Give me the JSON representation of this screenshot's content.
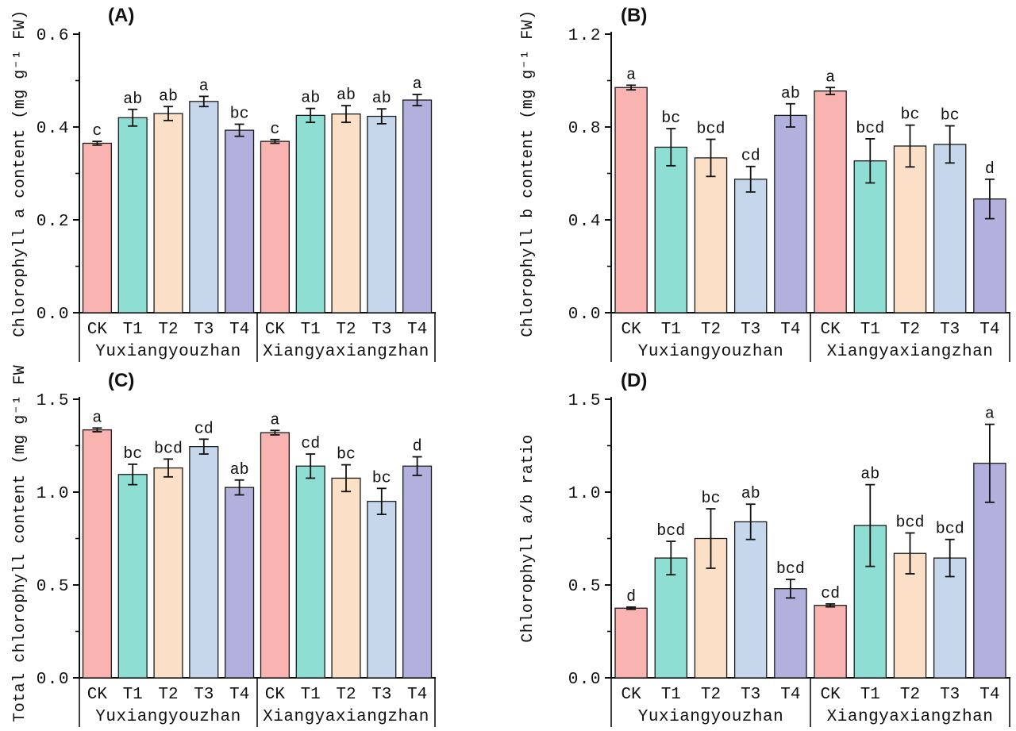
{
  "figure": {
    "background": "#ffffff",
    "series_colors": {
      "CK": "#F9B3B1",
      "T1": "#8EDED4",
      "T2": "#FBDFC6",
      "T3": "#C6D7EC",
      "T4": "#B2B0DC"
    },
    "bar_edge_color": "#1A1A1A",
    "error_bar_color": "#111111",
    "axis_color": "#111111"
  },
  "chart_data": [
    {
      "type": "bar",
      "tag": "(A)",
      "ylabel": "Chlorophyll a content (mg g⁻¹ FW)",
      "ylim": [
        0,
        0.6
      ],
      "yticks": [
        0,
        0.2,
        0.4,
        0.6
      ],
      "ytick_labels": [
        "0.0",
        "0.2",
        "0.4",
        "0.6"
      ],
      "minor_ticks": [
        0.1,
        0.3,
        0.5
      ],
      "categories": [
        "CK",
        "T1",
        "T2",
        "T3",
        "T4"
      ],
      "groups": [
        {
          "label": "Yuxiangyouzhan",
          "values": [
            0.365,
            0.42,
            0.429,
            0.455,
            0.393
          ],
          "errors": [
            0.004,
            0.018,
            0.015,
            0.011,
            0.013
          ],
          "letters": [
            "c",
            "ab",
            "ab",
            "a",
            "bc"
          ]
        },
        {
          "label": "Xiangyaxiangzhan",
          "values": [
            0.369,
            0.425,
            0.428,
            0.423,
            0.458
          ],
          "errors": [
            0.004,
            0.015,
            0.018,
            0.016,
            0.012
          ],
          "letters": [
            "c",
            "ab",
            "ab",
            "ab",
            "a"
          ]
        }
      ]
    },
    {
      "type": "bar",
      "tag": "(B)",
      "ylabel": "Chlorophyll b content (mg g⁻¹ FW)",
      "ylim": [
        0,
        1.2
      ],
      "yticks": [
        0,
        0.4,
        0.8,
        1.2
      ],
      "ytick_labels": [
        "0.0",
        "0.4",
        "0.8",
        "1.2"
      ],
      "minor_ticks": [
        0.2,
        0.6,
        1.0
      ],
      "categories": [
        "CK",
        "T1",
        "T2",
        "T3",
        "T4"
      ],
      "groups": [
        {
          "label": "Yuxiangyouzhan",
          "values": [
            0.97,
            0.713,
            0.667,
            0.575,
            0.85
          ],
          "errors": [
            0.01,
            0.08,
            0.08,
            0.055,
            0.05
          ],
          "letters": [
            "a",
            "bc",
            "bcd",
            "cd",
            "ab"
          ]
        },
        {
          "label": "Xiangyaxiangzhan",
          "values": [
            0.955,
            0.654,
            0.718,
            0.725,
            0.49
          ],
          "errors": [
            0.015,
            0.095,
            0.09,
            0.08,
            0.085
          ],
          "letters": [
            "a",
            "bcd",
            "bc",
            "bc",
            "d"
          ]
        }
      ]
    },
    {
      "type": "bar",
      "tag": "(C)",
      "ylabel": "Total chlorophyll content (mg g⁻¹ FW)",
      "ylim": [
        0,
        1.5
      ],
      "yticks": [
        0,
        0.5,
        1.0,
        1.5
      ],
      "ytick_labels": [
        "0.0",
        "0.5",
        "1.0",
        "1.5"
      ],
      "minor_ticks": [
        0.25,
        0.75,
        1.25
      ],
      "categories": [
        "CK",
        "T1",
        "T2",
        "T3",
        "T4"
      ],
      "groups": [
        {
          "label": "Yuxiangyouzhan",
          "values": [
            1.335,
            1.095,
            1.13,
            1.245,
            1.025
          ],
          "errors": [
            0.01,
            0.055,
            0.048,
            0.04,
            0.04
          ],
          "letters": [
            "a",
            "bc",
            "bcd",
            "cd",
            "ab"
          ]
        },
        {
          "label": "Xiangyaxiangzhan",
          "values": [
            1.32,
            1.14,
            1.075,
            0.95,
            1.14
          ],
          "errors": [
            0.012,
            0.065,
            0.072,
            0.07,
            0.05
          ],
          "letters": [
            "a",
            "cd",
            "bc",
            "bc",
            "d"
          ]
        }
      ]
    },
    {
      "type": "bar",
      "tag": "(D)",
      "ylabel": "Chlorophyll a/b ratio",
      "ylim": [
        0,
        1.5
      ],
      "yticks": [
        0,
        0.5,
        1.0,
        1.5
      ],
      "ytick_labels": [
        "0.0",
        "0.5",
        "1.0",
        "1.5"
      ],
      "minor_ticks": [
        0.25,
        0.75,
        1.25
      ],
      "categories": [
        "CK",
        "T1",
        "T2",
        "T3",
        "T4"
      ],
      "groups": [
        {
          "label": "Yuxiangyouzhan",
          "values": [
            0.375,
            0.645,
            0.75,
            0.84,
            0.48
          ],
          "errors": [
            0.006,
            0.09,
            0.16,
            0.095,
            0.05
          ],
          "letters": [
            "d",
            "bcd",
            "bc",
            "ab",
            "bcd"
          ]
        },
        {
          "label": "Xiangyaxiangzhan",
          "values": [
            0.39,
            0.82,
            0.67,
            0.645,
            1.155
          ],
          "errors": [
            0.008,
            0.22,
            0.11,
            0.1,
            0.21
          ],
          "letters": [
            "cd",
            "ab",
            "bcd",
            "bcd",
            "a"
          ]
        }
      ]
    }
  ]
}
